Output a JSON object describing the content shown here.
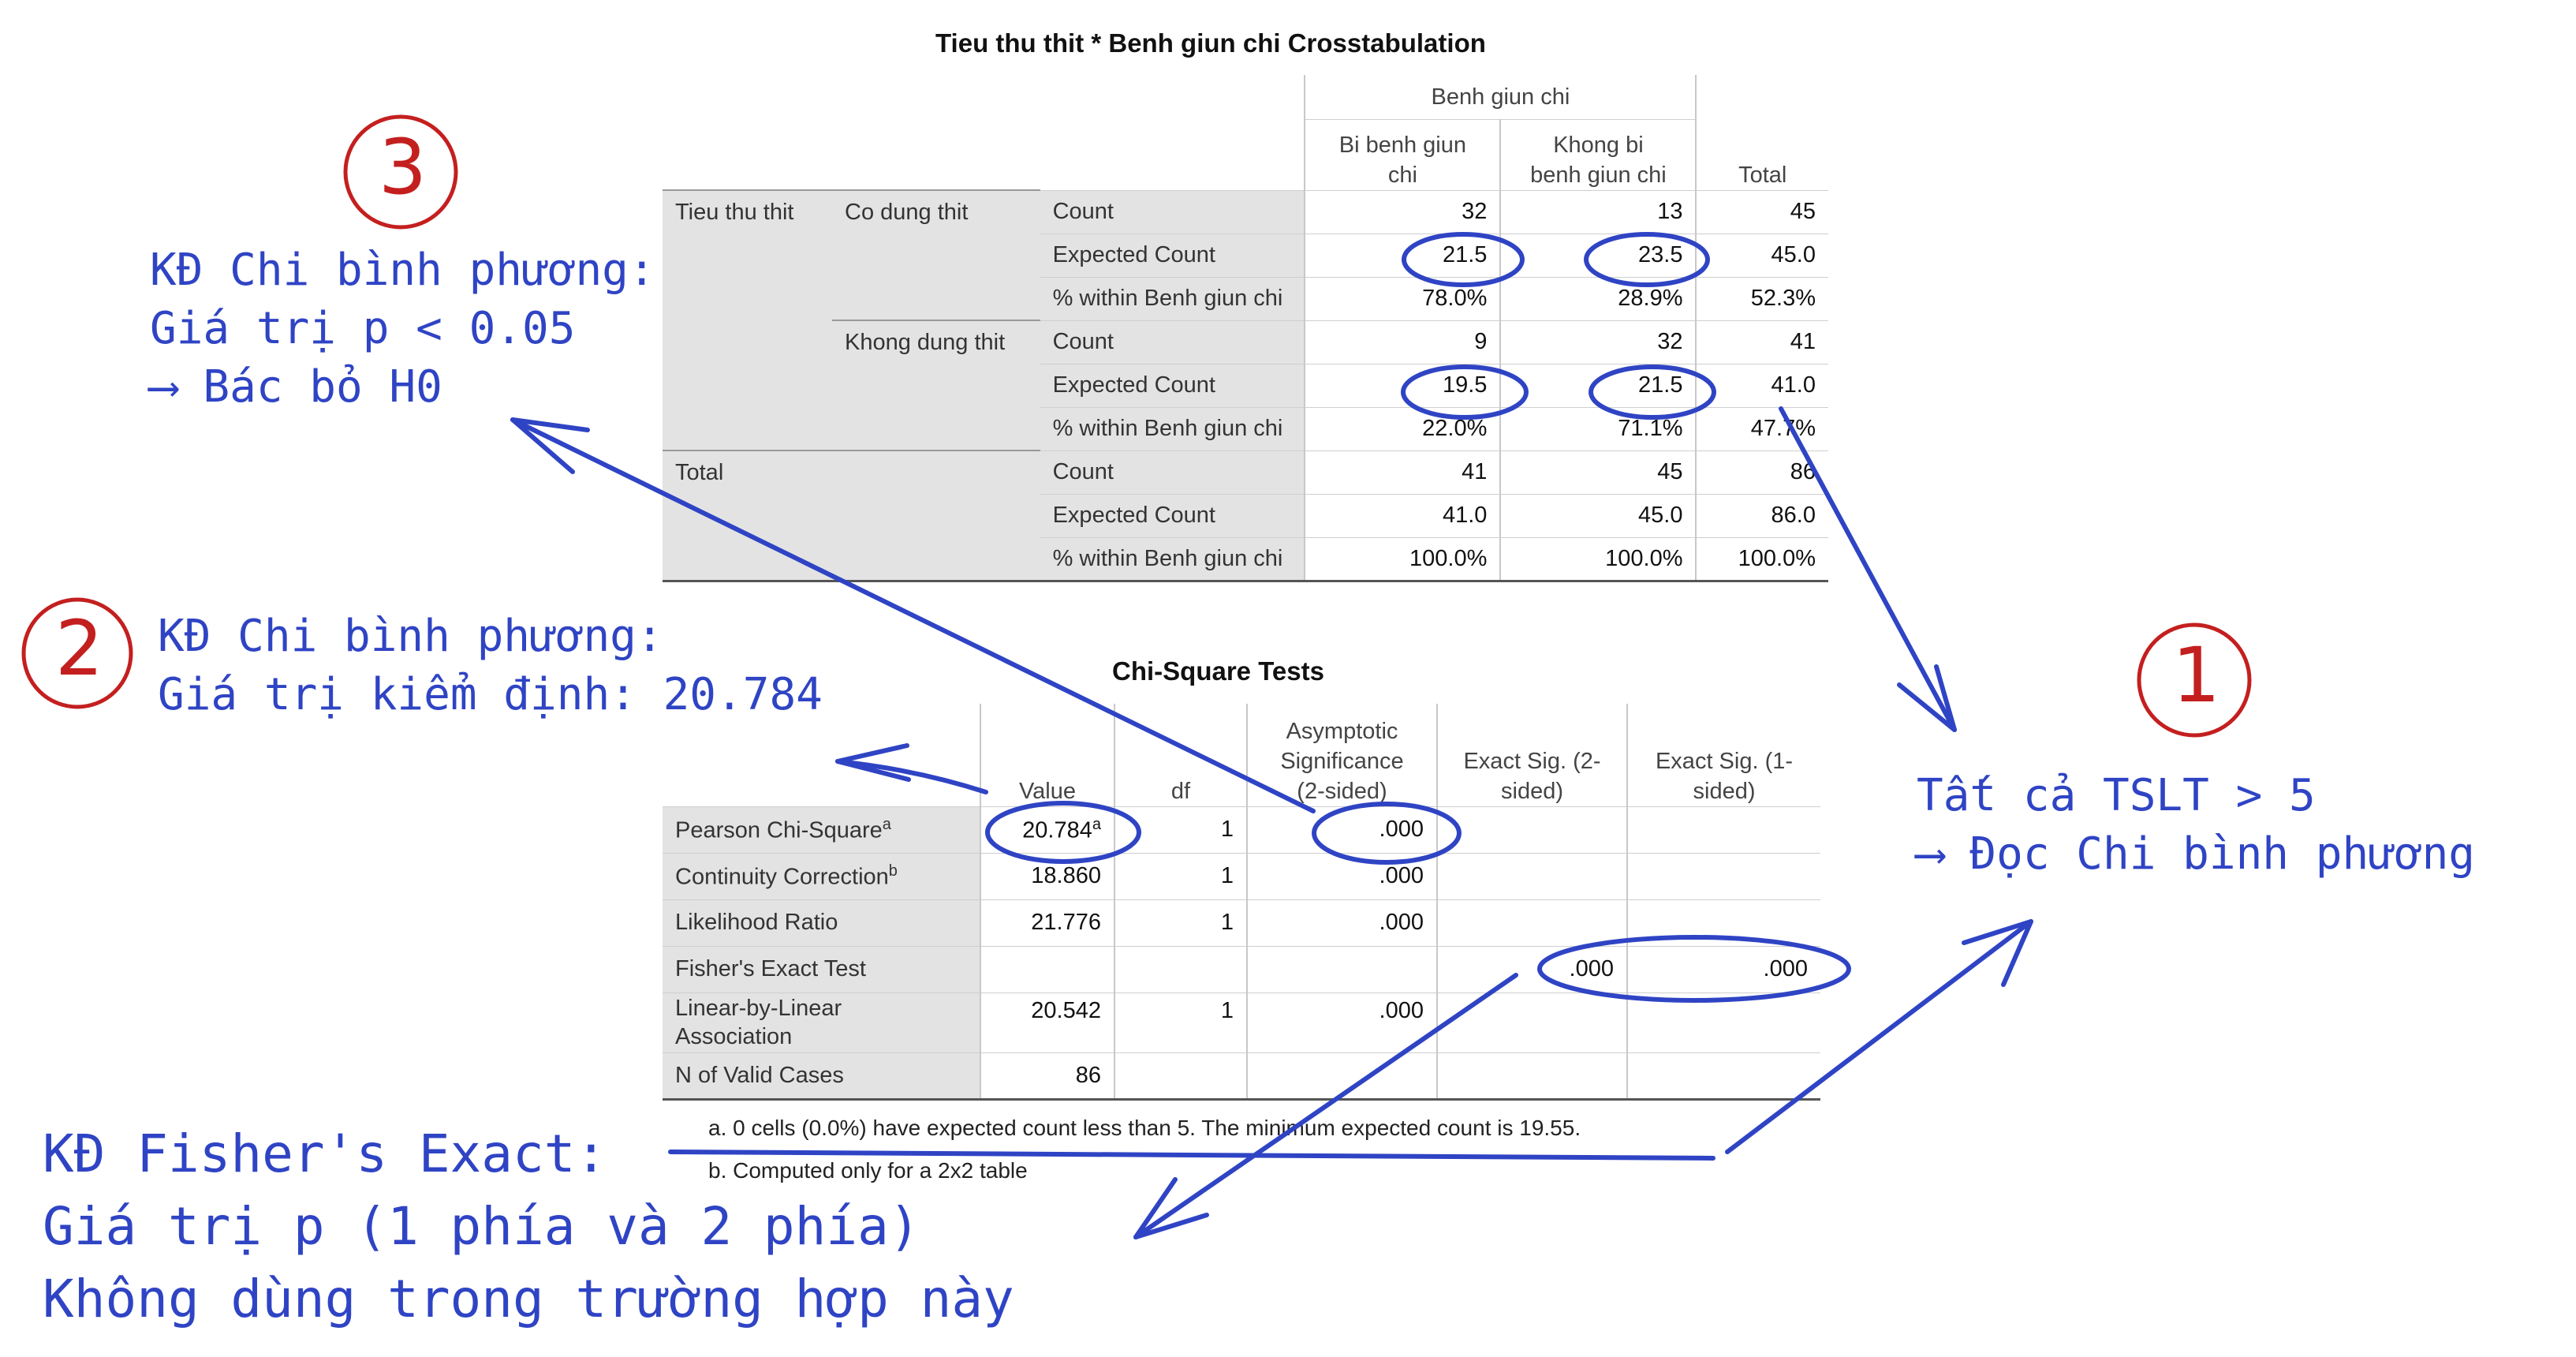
{
  "crosstab": {
    "title": "Tieu thu thit * Benh giun chi Crosstabulation",
    "col_group": "Benh giun chi",
    "col_headers": [
      "Bi benh giun\nchi",
      "Khong bi\nbenh giun chi",
      "Total"
    ],
    "rows": [
      {
        "g1": "Tieu thu thit",
        "g2": "Co dung thit",
        "stat": "Count",
        "v": [
          "32",
          "13",
          "45"
        ]
      },
      {
        "g1": "",
        "g2": "",
        "stat": "Expected Count",
        "v": [
          "21.5",
          "23.5",
          "45.0"
        ]
      },
      {
        "g1": "",
        "g2": "",
        "stat": "% within Benh giun chi",
        "v": [
          "78.0%",
          "28.9%",
          "52.3%"
        ]
      },
      {
        "g1": "",
        "g2": "Khong dung thit",
        "stat": "Count",
        "v": [
          "9",
          "32",
          "41"
        ]
      },
      {
        "g1": "",
        "g2": "",
        "stat": "Expected Count",
        "v": [
          "19.5",
          "21.5",
          "41.0"
        ]
      },
      {
        "g1": "",
        "g2": "",
        "stat": "% within Benh giun chi",
        "v": [
          "22.0%",
          "71.1%",
          "47.7%"
        ]
      },
      {
        "g1": "Total",
        "g2": "",
        "stat": "Count",
        "v": [
          "41",
          "45",
          "86"
        ]
      },
      {
        "g1": "",
        "g2": "",
        "stat": "Expected Count",
        "v": [
          "41.0",
          "45.0",
          "86.0"
        ]
      },
      {
        "g1": "",
        "g2": "",
        "stat": "% within Benh giun chi",
        "v": [
          "100.0%",
          "100.0%",
          "100.0%"
        ]
      }
    ]
  },
  "chisq": {
    "title": "Chi-Square Tests",
    "headers": [
      "Value",
      "df",
      "Asymptotic\nSignificance\n(2-sided)",
      "Exact Sig. (2-\nsided)",
      "Exact Sig. (1-\nsided)"
    ],
    "rows": [
      {
        "label": "Pearson Chi-Square",
        "sup": "a",
        "v": [
          "20.784",
          "1",
          ".000",
          "",
          ""
        ]
      },
      {
        "label": "Continuity Correction",
        "sup": "b",
        "v": [
          "18.860",
          "1",
          ".000",
          "",
          ""
        ]
      },
      {
        "label": "Likelihood Ratio",
        "sup": "",
        "v": [
          "21.776",
          "1",
          ".000",
          "",
          ""
        ]
      },
      {
        "label": "Fisher's Exact Test",
        "sup": "",
        "v": [
          "",
          "",
          "",
          ".000",
          ".000"
        ]
      },
      {
        "label": "Linear-by-Linear\nAssociation",
        "sup": "",
        "v": [
          "20.542",
          "1",
          ".000",
          "",
          ""
        ]
      },
      {
        "label": "N of Valid Cases",
        "sup": "",
        "v": [
          "86",
          "",
          "",
          "",
          ""
        ]
      }
    ],
    "footnote_a": "a. 0 cells (0.0%) have expected count less than 5. The minimum expected count is 19.55.",
    "footnote_b": "b. Computed only for a 2x2 table"
  },
  "annotations": {
    "n1": "1",
    "n2": "2",
    "n3": "3",
    "note1_l1": "Tất cả TSLT > 5",
    "note1_l2": "⟶ Đọc Chi bình phương",
    "note2_l1": "KĐ Chi bình phương:",
    "note2_l2": "Giá trị kiểm định: 20.784",
    "note3_l1": "KĐ Chi bình phương:",
    "note3_l2": "Giá trị p < 0.05",
    "note3_l3": "⟶ Bác bỏ H0",
    "note4_l1": "KĐ Fisher's Exact:",
    "note4_l2": "Giá trị p (1 phía và 2 phía)",
    "note4_l3": "Không dùng trong trường hợp này"
  },
  "colors": {
    "ink": "#2f44c4",
    "red": "#c41f1f"
  }
}
